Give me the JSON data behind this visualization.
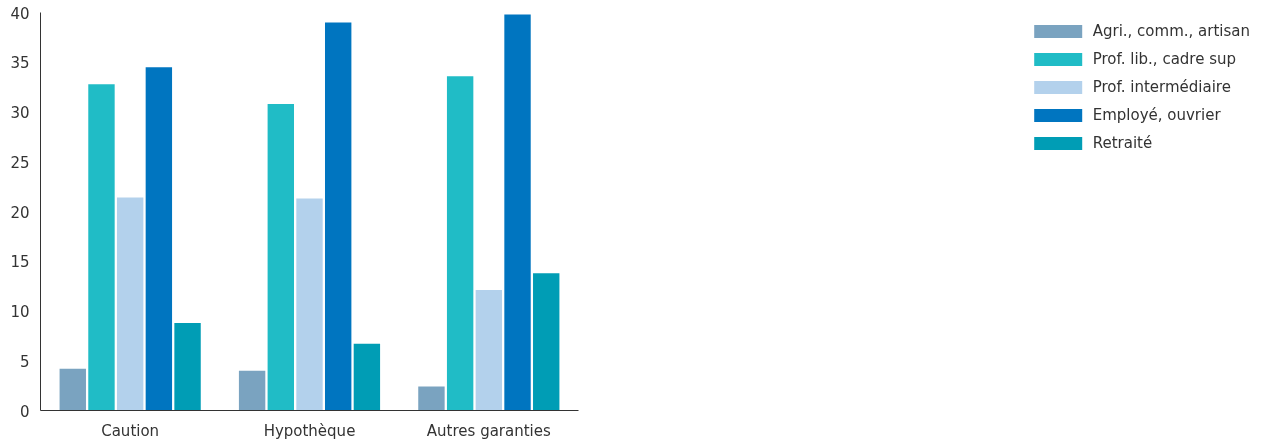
{
  "chart_data": {
    "type": "bar",
    "categories": [
      "Caution",
      "Hypothèque",
      "Autres garanties"
    ],
    "series": [
      {
        "name": "Agri., comm., artisan",
        "color": "#7aa3c0",
        "values": [
          4.2,
          4.0,
          2.4
        ]
      },
      {
        "name": "Prof. lib., cadre sup",
        "color": "#20bcc6",
        "values": [
          32.8,
          30.8,
          33.6
        ]
      },
      {
        "name": "Prof. intermédiaire",
        "color": "#b3d1ec",
        "values": [
          21.4,
          21.3,
          12.1
        ]
      },
      {
        "name": "Employé, ouvrier",
        "color": "#0075c0",
        "values": [
          34.5,
          39.0,
          39.8
        ]
      },
      {
        "name": "Retraité",
        "color": "#009db5",
        "values": [
          8.8,
          6.7,
          13.8
        ]
      }
    ],
    "ylim": [
      0,
      40
    ],
    "yticks": [
      0,
      5,
      10,
      15,
      20,
      25,
      30,
      35,
      40
    ],
    "grid": false,
    "legend": "right"
  }
}
